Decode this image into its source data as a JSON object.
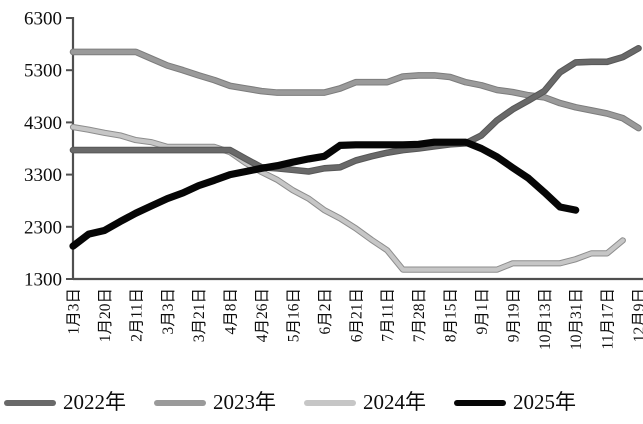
{
  "chart_data": {
    "type": "line",
    "title": "",
    "xlabel": "",
    "ylabel": "",
    "ylim": [
      1300,
      6300
    ],
    "y_ticks": [
      6300,
      5300,
      4300,
      3300,
      2300,
      1300
    ],
    "grid": false,
    "legend_position": "bottom",
    "x_tick_labels": [
      "1月3日",
      "1月20日",
      "2月11日",
      "3月3日",
      "3月21日",
      "4月8日",
      "4月26日",
      "5月16日",
      "6月2日",
      "6月21日",
      "7月11日",
      "7月28日",
      "8月15日",
      "9月1日",
      "9月19日",
      "10月13日",
      "10月31日",
      "11月17日",
      "12月9日"
    ],
    "samples_per_tick_interval": 2,
    "series": [
      {
        "name": "2022年",
        "color": "#696969",
        "outline": "#575757",
        "width": 4.6,
        "values": [
          3770,
          3770,
          3770,
          3770,
          3770,
          3770,
          3770,
          3770,
          3770,
          3770,
          3770,
          3600,
          3440,
          3420,
          3390,
          3360,
          3420,
          3440,
          3570,
          3650,
          3720,
          3770,
          3800,
          3840,
          3880,
          3900,
          4050,
          4340,
          4550,
          4720,
          4900,
          5260,
          5450,
          5460,
          5460,
          5550,
          5720
        ]
      },
      {
        "name": "2023年",
        "color": "#9a9a9a",
        "outline": "#7c7c7c",
        "width": 4.6,
        "values": [
          5650,
          5650,
          5650,
          5650,
          5650,
          5520,
          5390,
          5300,
          5200,
          5110,
          5000,
          4950,
          4900,
          4870,
          4870,
          4870,
          4870,
          4950,
          5070,
          5070,
          5070,
          5180,
          5200,
          5200,
          5170,
          5070,
          5010,
          4920,
          4880,
          4820,
          4780,
          4670,
          4590,
          4530,
          4470,
          4380,
          4190
        ]
      },
      {
        "name": "2024年",
        "color": "#c6c6c6",
        "outline": "#8d8d8d",
        "width": 4.2,
        "values": [
          4210,
          4160,
          4100,
          4050,
          3960,
          3920,
          3830,
          3830,
          3830,
          3830,
          3730,
          3520,
          3350,
          3200,
          3000,
          2840,
          2620,
          2460,
          2270,
          2050,
          1850,
          1480,
          1480,
          1480,
          1480,
          1480,
          1480,
          1480,
          1600,
          1600,
          1600,
          1600,
          1680,
          1790,
          1790,
          2040,
          null
        ]
      },
      {
        "name": "2025年",
        "color": "#060606",
        "outline": "#060606",
        "width": 5.2,
        "values": [
          1930,
          2160,
          2230,
          2400,
          2560,
          2700,
          2840,
          2950,
          3090,
          3190,
          3300,
          3360,
          3420,
          3470,
          3540,
          3600,
          3650,
          3860,
          3870,
          3870,
          3870,
          3870,
          3880,
          3920,
          3920,
          3920,
          3800,
          3640,
          3430,
          3230,
          2960,
          2680,
          2620,
          null,
          null,
          null,
          null
        ]
      }
    ],
    "axis_color": "#4f4f4f",
    "tick_label_color": "#0c0c0c"
  }
}
